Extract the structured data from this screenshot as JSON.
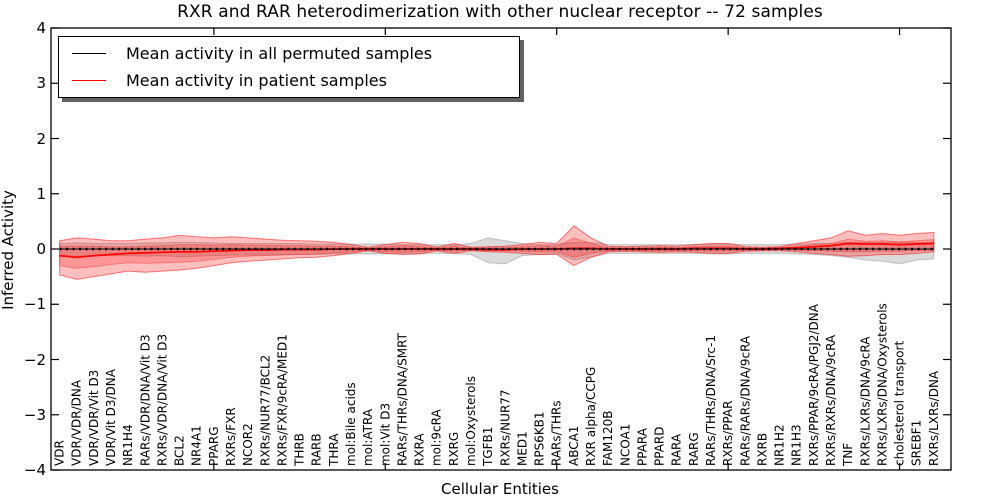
{
  "title": "RXR and RAR heterodimerization with other nuclear receptor -- 72 samples",
  "legend": {
    "items": [
      {
        "label": "Mean activity in all permuted samples",
        "color": "#000000"
      },
      {
        "label": "Mean activity in patient samples",
        "color": "#ff0000"
      }
    ]
  },
  "axes": {
    "ylabel": "Inferred Activity",
    "xlabel": "Cellular Entities",
    "ytick_labels": [
      "4",
      "3",
      "2",
      "1",
      "0",
      "−1",
      "−2",
      "−3",
      "−4"
    ],
    "ytick_values": [
      4,
      3,
      2,
      1,
      0,
      -1,
      -2,
      -3,
      -4
    ],
    "xtick_values": [
      10,
      20,
      30,
      40,
      50
    ]
  },
  "colors": {
    "permuted_line": "#000000",
    "patient_line": "#ff0000",
    "permuted_band_fill": "rgba(0,0,0,0.14)",
    "permuted_band_edge": "rgba(0,0,0,0.18)",
    "patient_band_fill": "rgba(255,0,0,0.25)",
    "patient_band_edge": "rgba(255,0,0,0.5)",
    "patient_inner_fill": "rgba(255,0,0,0.22)",
    "patient_inner_edge": "rgba(255,0,0,0.35)"
  },
  "chart_data": {
    "type": "line",
    "title": "RXR and RAR heterodimerization with other nuclear receptor -- 72 samples",
    "xlabel": "Cellular Entities",
    "ylabel": "Inferred Activity",
    "ylim": [
      -4,
      4
    ],
    "grid": false,
    "legend_position": "upper left",
    "n_samples": 72,
    "categories": [
      "VDR",
      "VDR/VDR/DNA",
      "VDR/VDR/Vit D3",
      "VDR/Vit D3/DNA",
      "NR1H4",
      "RARs/VDR/DNA/Vit D3",
      "RXRs/VDR/DNA/Vit D3",
      "BCL2",
      "NR4A1",
      "PPARG",
      "RXRs/FXR",
      "NCOR2",
      "RXRs/NUR77/BCL2",
      "RXRs/FXR/9cRA/MED1",
      "THRB",
      "RARB",
      "THRA",
      "mol:Bile acids",
      "mol:ATRA",
      "mol:Vit D3",
      "RARs/THRs/DNA/SMRT",
      "RXRA",
      "mol:9cRA",
      "RXRG",
      "mol:Oxysterols",
      "TGFB1",
      "RXRs/NUR77",
      "MED1",
      "RPS6KB1",
      "RARs/THRs",
      "ABCA1",
      "RXR alpha/CCPG",
      "FAM120B",
      "NCOA1",
      "PPARA",
      "PPARD",
      "RARA",
      "RARG",
      "RARs/THRs/DNA/Src-1",
      "RXRs/PPAR",
      "RARs/RARs/DNA/9cRA",
      "RXRB",
      "NR1H2",
      "NR1H3",
      "RXRs/PPAR/9cRA/PGJ2/DNA",
      "RXRs/RXRs/DNA/9cRA",
      "TNF",
      "RXRs/LXRs/DNA/9cRA",
      "RXRs/LXRs/DNA/Oxysterols",
      "cholesterol transport",
      "SREBF1",
      "RXRs/LXRs/DNA"
    ],
    "series": [
      {
        "name": "Mean activity in all permuted samples",
        "color": "#000000",
        "values": [
          0,
          0,
          0,
          0,
          0,
          0,
          0,
          0,
          0,
          0,
          0,
          0,
          0,
          0,
          0,
          0,
          0,
          0,
          0,
          0,
          0,
          0,
          0,
          0,
          0,
          0,
          0,
          0,
          0,
          0,
          0,
          0,
          0,
          0,
          0,
          0,
          0,
          0,
          0,
          0,
          0,
          0,
          0,
          0,
          0,
          0,
          0,
          0,
          0,
          0,
          0,
          0
        ],
        "band_upper": [
          0.1,
          0.11,
          0.1,
          0.1,
          0.1,
          0.11,
          0.11,
          0.12,
          0.12,
          0.11,
          0.1,
          0.1,
          0.1,
          0.1,
          0.1,
          0.09,
          0.09,
          0.09,
          0.09,
          0.09,
          0.08,
          0.08,
          0.08,
          0.08,
          0.1,
          0.2,
          0.15,
          0.1,
          0.08,
          0.08,
          0.12,
          0.12,
          0.08,
          0.08,
          0.08,
          0.08,
          0.08,
          0.08,
          0.09,
          0.09,
          0.08,
          0.08,
          0.08,
          0.09,
          0.1,
          0.1,
          0.12,
          0.12,
          0.12,
          0.12,
          0.12,
          0.12
        ],
        "band_lower": [
          -0.13,
          -0.13,
          -0.12,
          -0.12,
          -0.12,
          -0.13,
          -0.12,
          -0.14,
          -0.13,
          -0.12,
          -0.11,
          -0.11,
          -0.11,
          -0.1,
          -0.1,
          -0.1,
          -0.09,
          -0.09,
          -0.09,
          -0.09,
          -0.08,
          -0.08,
          -0.08,
          -0.08,
          -0.1,
          -0.25,
          -0.27,
          -0.12,
          -0.1,
          -0.08,
          -0.2,
          -0.15,
          -0.08,
          -0.08,
          -0.08,
          -0.08,
          -0.08,
          -0.08,
          -0.09,
          -0.09,
          -0.08,
          -0.08,
          -0.08,
          -0.09,
          -0.1,
          -0.12,
          -0.15,
          -0.2,
          -0.22,
          -0.27,
          -0.2,
          -0.18
        ]
      },
      {
        "name": "Mean activity in patient samples",
        "color": "#ff0000",
        "values": [
          -0.12,
          -0.15,
          -0.12,
          -0.1,
          -0.08,
          -0.07,
          -0.06,
          -0.05,
          -0.05,
          -0.04,
          -0.03,
          -0.02,
          -0.02,
          -0.01,
          -0.01,
          -0.01,
          0,
          0,
          0,
          0,
          0,
          0,
          0,
          0,
          0,
          -0.01,
          -0.01,
          0,
          0,
          0,
          0.01,
          0.01,
          0,
          0,
          0,
          0,
          0,
          0.01,
          0.01,
          0.01,
          0,
          0,
          0.01,
          0.02,
          0.04,
          0.06,
          0.1,
          0.09,
          0.09,
          0.08,
          0.09,
          0.1
        ],
        "band_upper": [
          0.15,
          0.2,
          0.18,
          0.15,
          0.15,
          0.18,
          0.2,
          0.25,
          0.22,
          0.2,
          0.22,
          0.2,
          0.18,
          0.16,
          0.15,
          0.14,
          0.12,
          0.08,
          0.03,
          0.08,
          0.12,
          0.1,
          0.03,
          0.1,
          0.03,
          0.04,
          0.05,
          0.08,
          0.12,
          0.1,
          0.42,
          0.2,
          0.05,
          0.04,
          0.05,
          0.06,
          0.05,
          0.08,
          0.1,
          0.1,
          0.04,
          0.03,
          0.04,
          0.1,
          0.15,
          0.2,
          0.33,
          0.25,
          0.28,
          0.25,
          0.28,
          0.3
        ],
        "band_lower": [
          -0.47,
          -0.55,
          -0.5,
          -0.45,
          -0.4,
          -0.42,
          -0.4,
          -0.38,
          -0.35,
          -0.3,
          -0.25,
          -0.22,
          -0.2,
          -0.18,
          -0.16,
          -0.15,
          -0.12,
          -0.08,
          -0.03,
          -0.08,
          -0.1,
          -0.09,
          -0.03,
          -0.08,
          -0.03,
          -0.05,
          -0.06,
          -0.08,
          -0.1,
          -0.1,
          -0.3,
          -0.15,
          -0.05,
          -0.04,
          -0.05,
          -0.06,
          -0.05,
          -0.06,
          -0.08,
          -0.08,
          -0.04,
          -0.03,
          -0.03,
          -0.05,
          -0.08,
          -0.1,
          -0.13,
          -0.12,
          -0.1,
          -0.1,
          -0.08,
          -0.05
        ],
        "inner_band_upper": [
          0.05,
          0.05,
          0.05,
          0.04,
          0.04,
          0.05,
          0.06,
          0.08,
          0.08,
          0.07,
          0.08,
          0.07,
          0.07,
          0.06,
          0.06,
          0.05,
          0.05,
          0.04,
          0.01,
          0.04,
          0.06,
          0.05,
          0.01,
          0.05,
          0.01,
          0.02,
          0.02,
          0.04,
          0.06,
          0.05,
          0.2,
          0.1,
          0.02,
          0.02,
          0.02,
          0.03,
          0.02,
          0.04,
          0.05,
          0.05,
          0.02,
          0.01,
          0.02,
          0.05,
          0.08,
          0.1,
          0.18,
          0.14,
          0.15,
          0.13,
          0.15,
          0.17
        ],
        "inner_band_lower": [
          -0.3,
          -0.35,
          -0.32,
          -0.28,
          -0.25,
          -0.26,
          -0.25,
          -0.24,
          -0.22,
          -0.19,
          -0.15,
          -0.13,
          -0.12,
          -0.11,
          -0.1,
          -0.09,
          -0.07,
          -0.05,
          -0.02,
          -0.05,
          -0.06,
          -0.05,
          -0.02,
          -0.04,
          -0.02,
          -0.03,
          -0.03,
          -0.04,
          -0.05,
          -0.05,
          -0.15,
          -0.08,
          -0.03,
          -0.02,
          -0.03,
          -0.03,
          -0.03,
          -0.03,
          -0.04,
          -0.04,
          -0.02,
          -0.02,
          -0.01,
          -0.02,
          -0.03,
          -0.04,
          -0.05,
          -0.05,
          -0.04,
          -0.04,
          -0.03,
          -0.02
        ]
      }
    ]
  }
}
